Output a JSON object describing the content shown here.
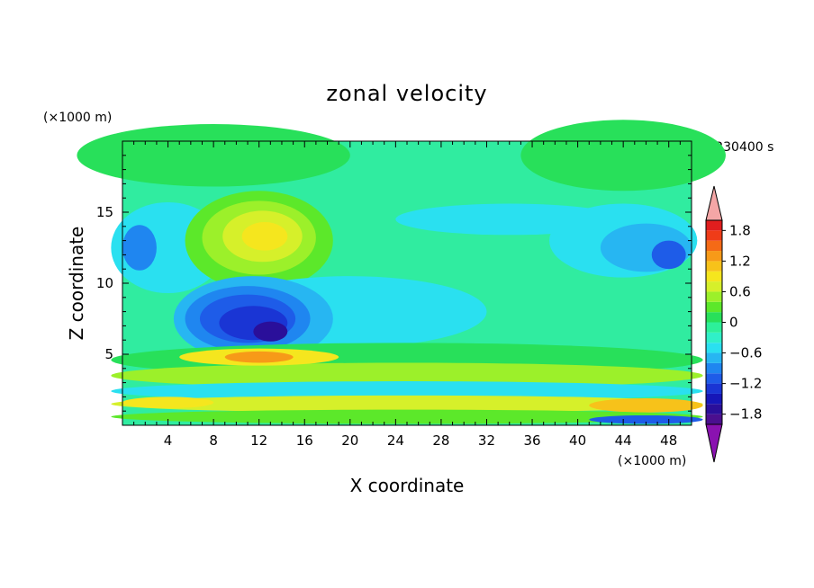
{
  "chart_data": {
    "type": "heatmap",
    "title": "zonal velocity",
    "xlabel": "X coordinate",
    "ylabel": "Z coordinate",
    "x_unit": "(×1000 m)",
    "y_unit": "(×1000 m)",
    "time_label": "t=230400 s",
    "xlim": [
      0,
      50
    ],
    "ylim": [
      0,
      20
    ],
    "x_ticks": [
      4,
      8,
      12,
      16,
      20,
      24,
      28,
      32,
      36,
      40,
      44,
      48
    ],
    "y_ticks": [
      5,
      10,
      15
    ],
    "colorbar": {
      "levels": [
        -2.0,
        -1.8,
        -1.6,
        -1.4,
        -1.2,
        -1.0,
        -0.8,
        -0.6,
        -0.4,
        -0.2,
        0,
        0.2,
        0.4,
        0.6,
        0.8,
        1.0,
        1.2,
        1.4,
        1.6,
        1.8,
        2.0
      ],
      "tick_labels": [
        "1.8",
        "1.2",
        "0.6",
        "0",
        "−0.6",
        "−1.2",
        "−1.8"
      ],
      "tick_values": [
        1.8,
        1.2,
        0.6,
        0,
        -0.6,
        -1.2,
        -1.8
      ],
      "colors": [
        "#4b0f8f",
        "#2a0f9a",
        "#1616b8",
        "#1a35d4",
        "#1e5ce8",
        "#1f86f0",
        "#27b6f2",
        "#2ae0f0",
        "#30f0c8",
        "#2df09a",
        "#28e05a",
        "#5ce82a",
        "#9cf02a",
        "#d6f02a",
        "#f5e61e",
        "#f7c21a",
        "#f79a18",
        "#f56a16",
        "#ef3c18",
        "#e01e1e"
      ],
      "under_color": "#8a12b0",
      "over_color": "#f4a6a6"
    },
    "grid": false
  }
}
